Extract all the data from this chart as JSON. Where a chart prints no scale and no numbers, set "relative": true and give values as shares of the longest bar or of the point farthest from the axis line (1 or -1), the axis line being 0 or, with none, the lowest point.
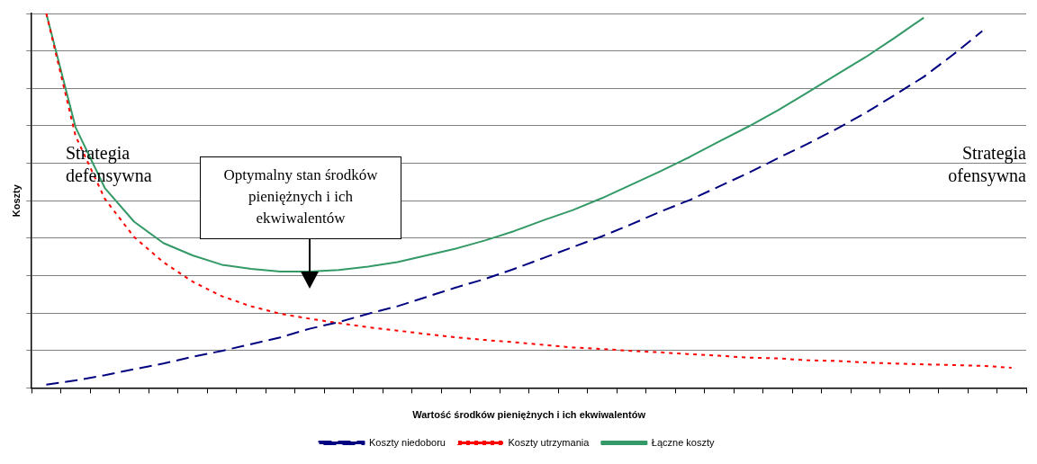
{
  "chart_data": {
    "type": "line",
    "relative": true,
    "xlabel": "Wartość środków pieniężnych i ich ekwiwalentów",
    "ylabel": "Koszty",
    "categories": [
      null,
      null,
      null,
      null,
      null,
      null,
      null,
      null,
      null,
      null,
      null,
      null,
      null,
      null,
      null,
      null,
      null,
      null,
      null,
      null,
      null,
      null,
      null,
      null,
      null,
      null,
      null,
      null,
      null,
      null,
      null,
      null,
      null,
      null
    ],
    "series": [
      {
        "name": "Koszty niedoboru",
        "color": "#000080",
        "line_style": "dashed",
        "values": [
          0.009,
          0.02,
          0.034,
          0.05,
          0.065,
          0.083,
          0.099,
          0.117,
          0.135,
          0.158,
          0.176,
          0.198,
          0.218,
          0.243,
          0.268,
          0.291,
          0.318,
          0.347,
          0.376,
          0.405,
          0.437,
          0.471,
          0.502,
          0.538,
          0.574,
          0.613,
          0.651,
          0.691,
          0.734,
          0.782,
          0.831,
          0.89,
          0.953,
          null
        ]
      },
      {
        "name": "Koszty utrzymania",
        "color": "#ff0000",
        "line_style": "dotted",
        "values": [
          1.0,
          0.673,
          0.505,
          0.403,
          0.336,
          0.284,
          0.245,
          0.218,
          0.198,
          0.185,
          0.173,
          0.162,
          0.153,
          0.144,
          0.135,
          0.128,
          0.122,
          0.115,
          0.108,
          0.104,
          0.099,
          0.095,
          0.09,
          0.086,
          0.081,
          0.079,
          0.074,
          0.072,
          0.068,
          0.065,
          0.063,
          0.061,
          0.059,
          0.054
        ]
      },
      {
        "name": "Łączne koszty",
        "color": "#339966",
        "line_style": "solid",
        "values": [
          1.0,
          0.696,
          0.534,
          0.444,
          0.387,
          0.354,
          0.329,
          0.318,
          0.311,
          0.311,
          0.315,
          0.324,
          0.336,
          0.354,
          0.372,
          0.394,
          0.419,
          0.448,
          0.475,
          0.507,
          0.543,
          0.579,
          0.617,
          0.658,
          0.698,
          0.741,
          0.788,
          0.836,
          0.883,
          0.935,
          0.989,
          null,
          null,
          null
        ]
      }
    ],
    "marker": "none",
    "grid": "y",
    "legend": "bottom",
    "annotations": [
      "Strategia defensywna",
      "Strategia ofensywna",
      "Optymalny stan środków pieniężnych i ich ekwiwalentów"
    ]
  }
}
